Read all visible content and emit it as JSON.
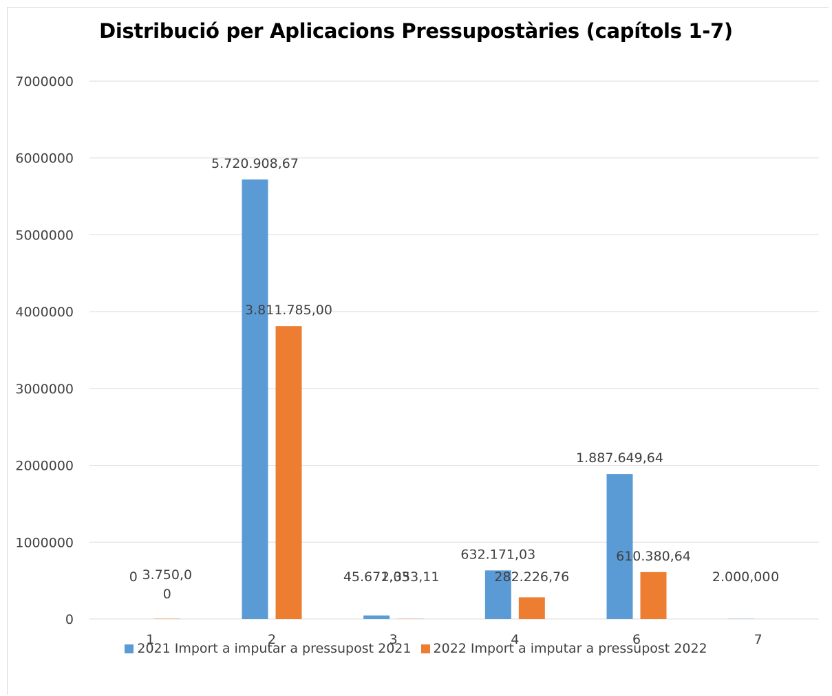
{
  "chart_data": {
    "type": "bar",
    "title": "Distribució per Aplicacions Pressupostàries (capítols 1-7)",
    "xlabel": "",
    "ylabel": "",
    "categories": [
      "1",
      "2",
      "3",
      "4",
      "6",
      "7"
    ],
    "ylim": [
      0,
      7000000
    ],
    "yticks": [
      "0",
      "1000000",
      "2000000",
      "3000000",
      "4000000",
      "5000000",
      "6000000",
      "7000000"
    ],
    "grid": true,
    "legend_position": "bottom",
    "series": [
      {
        "name": "2021 Import a imputar a pressupost 2021",
        "color": "#5b9bd5",
        "values": [
          0,
          5720908.67,
          45671.03,
          632171.03,
          1887649.64,
          2000.0
        ],
        "labels": [
          "0",
          "5.720.908,67",
          "45.671,03",
          "632.171,03",
          "1.887.649,64",
          "2.000,00"
        ]
      },
      {
        "name": "2022 Import a imputar a pressupost 2022",
        "color": "#ed7d31",
        "values": [
          3750.0,
          3811785.0,
          2353.11,
          282226.76,
          610380.64,
          0
        ],
        "labels": [
          "3.750,0\n0",
          "3.811.785,00",
          "2.353,11",
          "282.226,76",
          "610.380,64",
          "0"
        ]
      }
    ]
  }
}
